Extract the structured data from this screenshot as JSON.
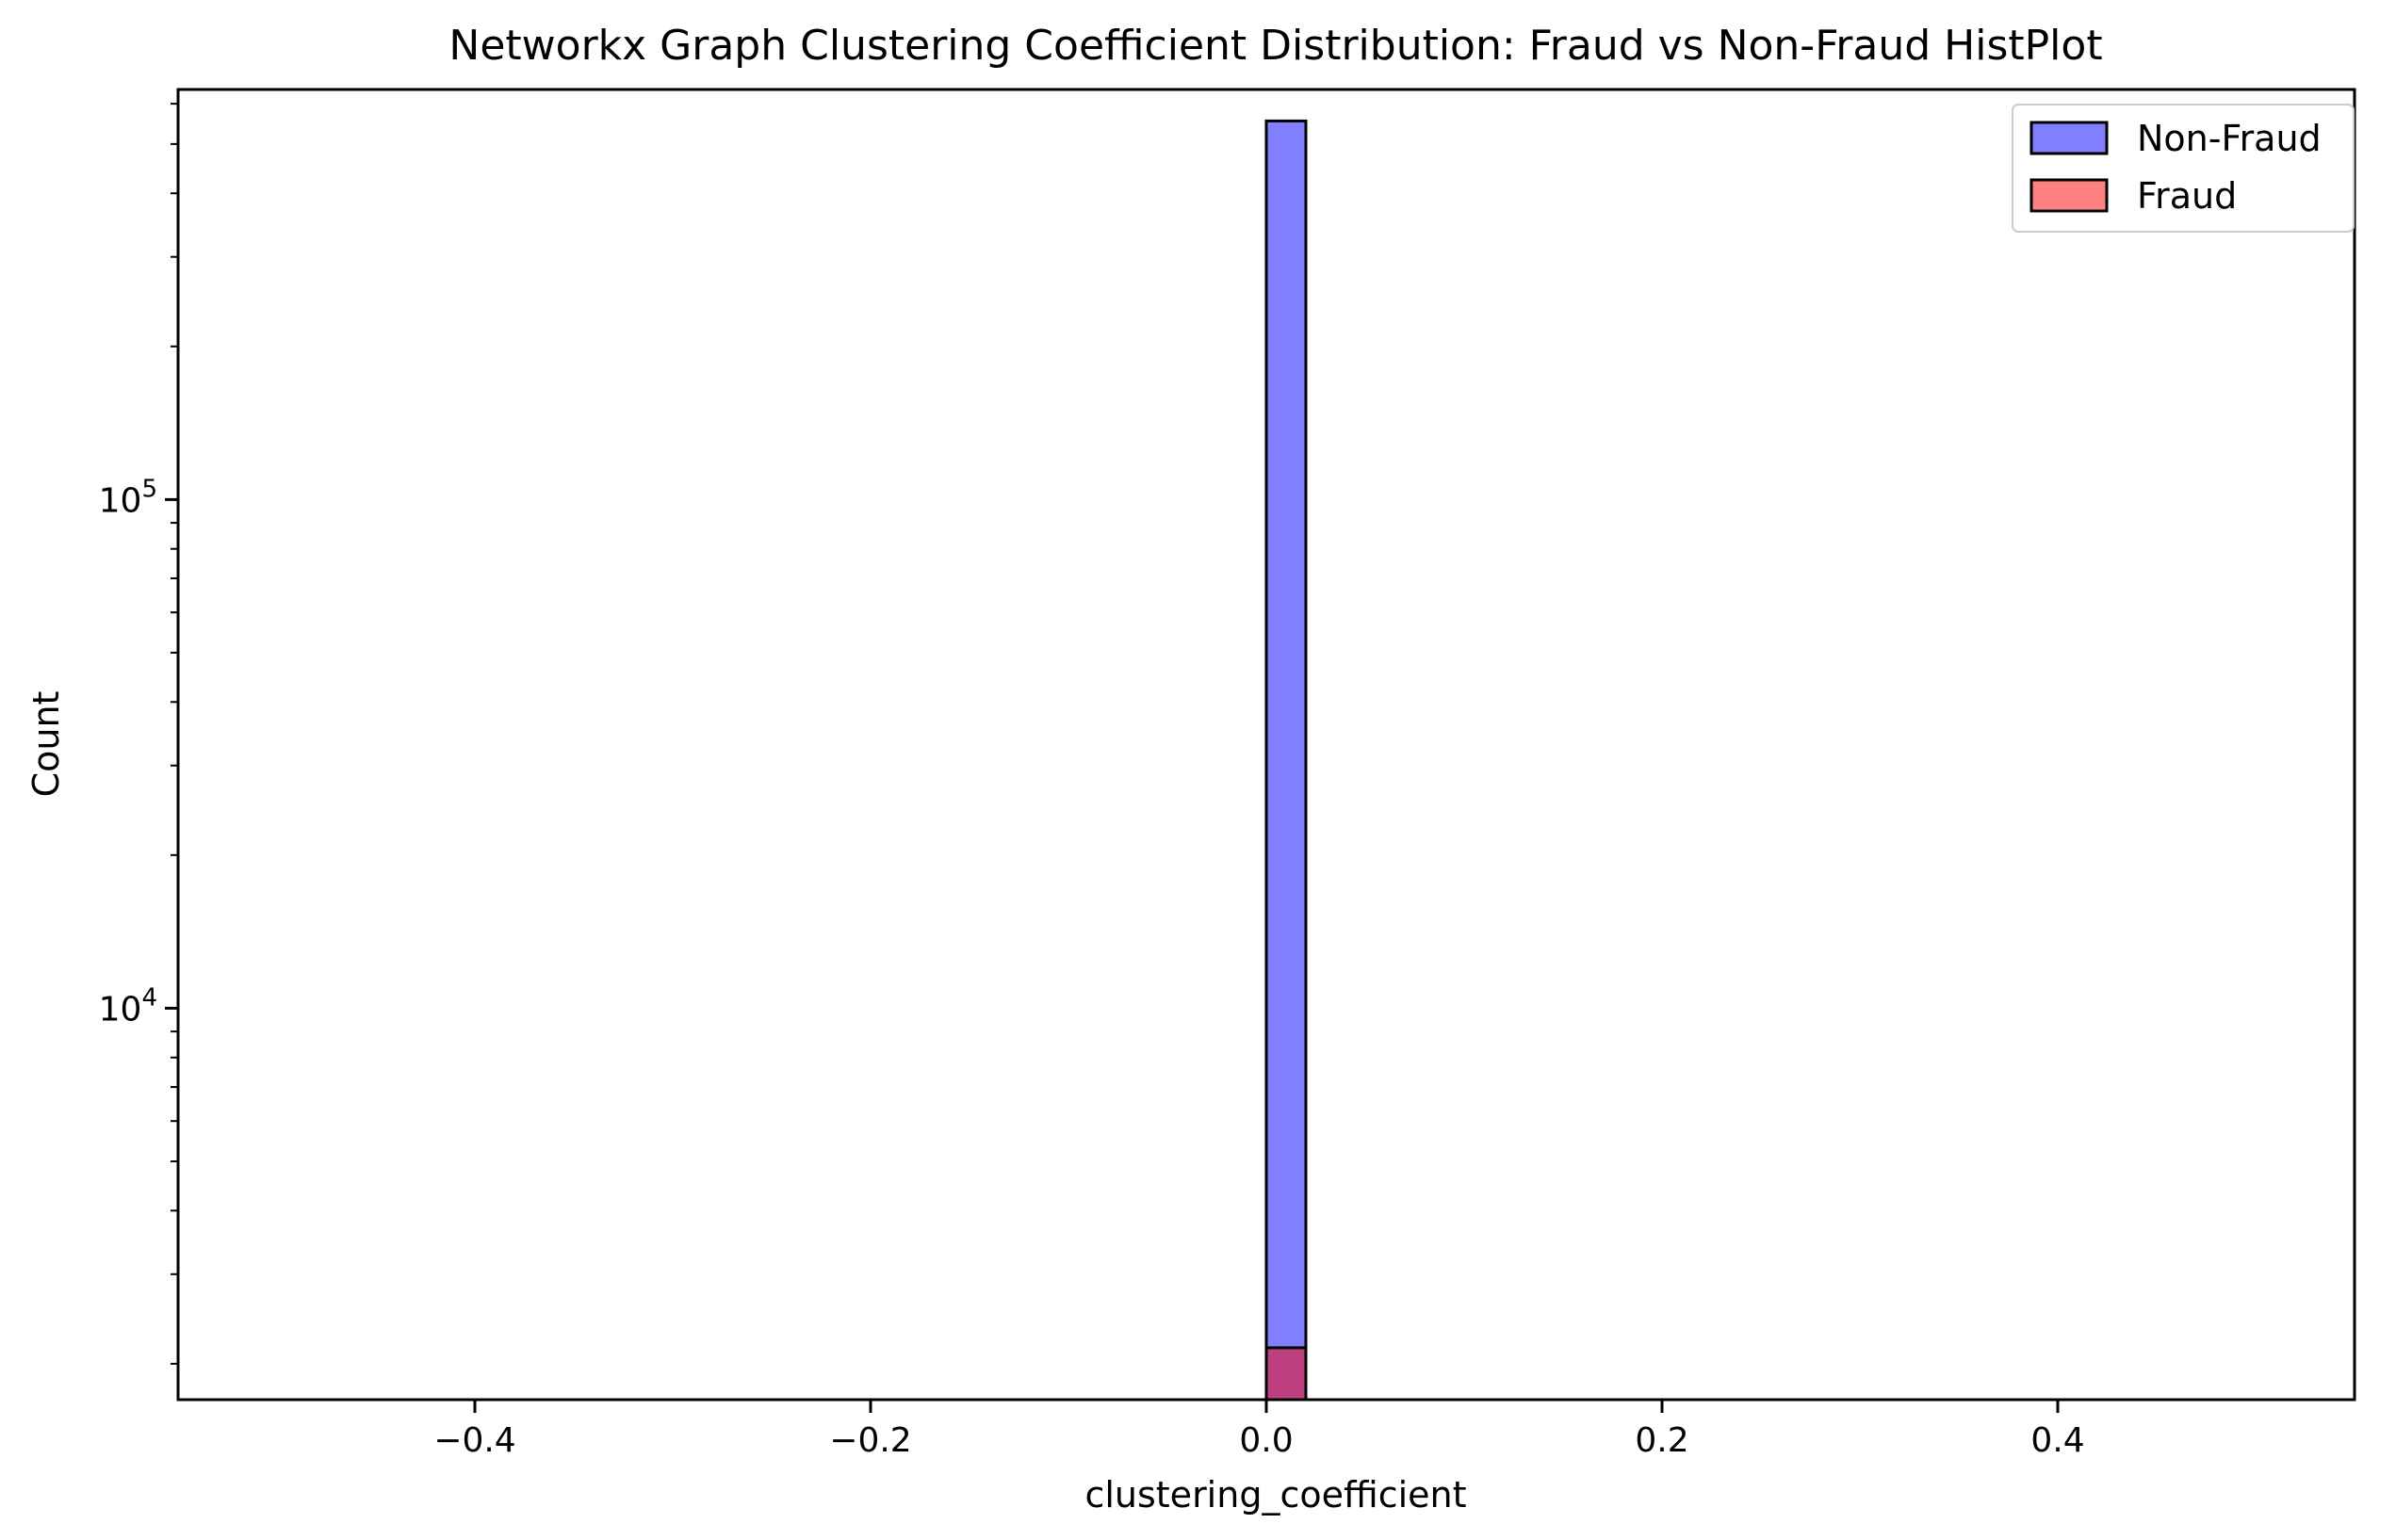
{
  "chart_data": {
    "type": "bar",
    "title": "Networkx Graph Clustering Coefficient Distribution: Fraud vs Non-Fraud HistPlot",
    "xlabel": "clustering_coefficient",
    "ylabel": "Count",
    "xlim": [
      -0.55,
      0.55
    ],
    "ylim": [
      1700,
      640000
    ],
    "yscale": "log",
    "grid": false,
    "legend_position": "top-right",
    "x_ticks": [
      {
        "value": -0.4,
        "label": "−0.4"
      },
      {
        "value": -0.2,
        "label": "−0.2"
      },
      {
        "value": 0.0,
        "label": "0.0"
      },
      {
        "value": 0.2,
        "label": "0.2"
      },
      {
        "value": 0.4,
        "label": "0.4"
      }
    ],
    "y_ticks": [
      {
        "value": 10000,
        "base": "10",
        "exp": "4"
      },
      {
        "value": 100000,
        "base": "10",
        "exp": "5"
      }
    ],
    "bin": {
      "start": 0.0,
      "end": 0.02
    },
    "series": [
      {
        "name": "Non-Fraud",
        "color": "#8080ff",
        "values": [
          555000
        ]
      },
      {
        "name": "Fraud",
        "color": "#ff8080",
        "values": [
          2150
        ]
      }
    ],
    "overlap_color": "#bf4080"
  }
}
